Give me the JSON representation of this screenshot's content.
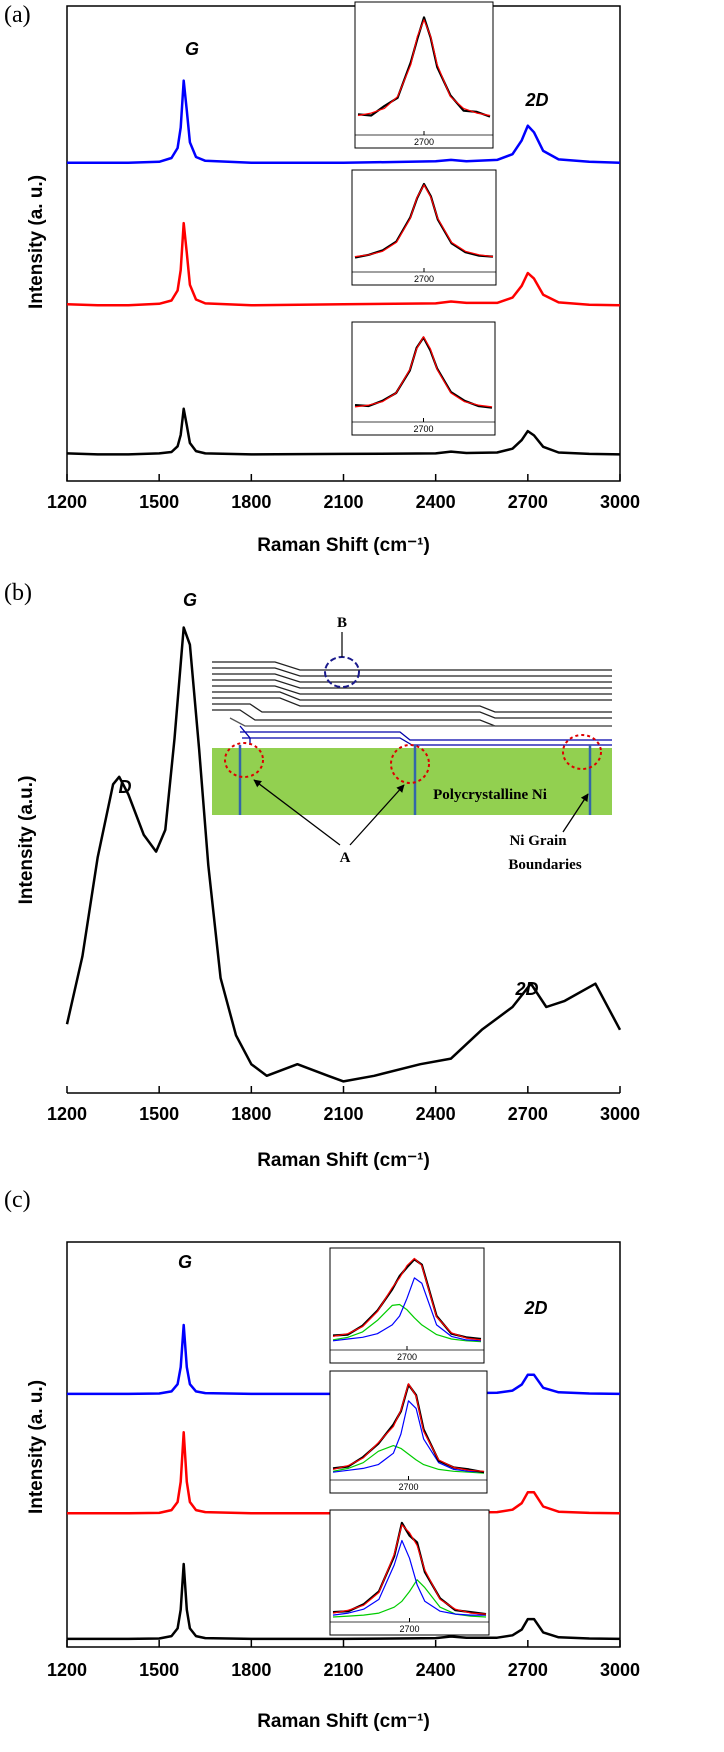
{
  "chart_data": [
    {
      "type": "line",
      "panel_label": "(a)",
      "xlabel": "Raman Shift (cm⁻¹)",
      "ylabel": "Intensity (a. u.)",
      "xlim": [
        1200,
        3000
      ],
      "xticks": [
        1200,
        1500,
        1800,
        2100,
        2400,
        2700,
        3000
      ],
      "ylim": [
        0,
        100
      ],
      "frame": true,
      "annotations": [
        "G",
        "2D"
      ],
      "x": [
        1200,
        1300,
        1400,
        1500,
        1540,
        1560,
        1570,
        1580,
        1590,
        1600,
        1620,
        1650,
        1800,
        2100,
        2400,
        2450,
        2500,
        2600,
        2650,
        2680,
        2700,
        2720,
        2750,
        2800,
        2900,
        3000
      ],
      "series": [
        {
          "color": "#0000ff",
          "values": [
            67,
            67,
            67,
            67.2,
            68,
            70.1,
            74.4,
            84.3,
            78,
            71.3,
            68.2,
            67.4,
            67,
            67,
            67.3,
            67.6,
            67.3,
            67.6,
            68.8,
            71.7,
            74.8,
            73.4,
            69.5,
            67.7,
            67.2,
            67
          ]
        },
        {
          "color": "#ff0000",
          "values": [
            37.2,
            37,
            37,
            37.3,
            38,
            40.1,
            44.4,
            54.3,
            48,
            41.3,
            38.2,
            37.4,
            37,
            37.2,
            37.4,
            37.8,
            37.5,
            37.5,
            38.6,
            41.1,
            43.8,
            42.6,
            39.2,
            37.6,
            37.1,
            37
          ]
        },
        {
          "color": "#000000",
          "values": [
            5.8,
            5.6,
            5.6,
            5.8,
            6.1,
            7.3,
            9.7,
            15.2,
            11.7,
            8,
            6.3,
            5.8,
            5.6,
            5.7,
            5.8,
            6.2,
            5.9,
            6,
            6.8,
            8.6,
            10.5,
            9.6,
            7.2,
            6,
            5.7,
            5.6
          ]
        }
      ],
      "insets": [
        {
          "xlim": [
            2600,
            2800
          ],
          "ylim": [
            0,
            1.05
          ],
          "xticks": [
            2700
          ],
          "x": [
            2600,
            2620,
            2640,
            2660,
            2680,
            2690,
            2700,
            2710,
            2720,
            2740,
            2760,
            2780,
            2800
          ],
          "series": [
            {
              "color": "#000000",
              "values": [
                0.15,
                0.14,
                0.22,
                0.29,
                0.59,
                0.79,
                0.97,
                0.8,
                0.55,
                0.31,
                0.18,
                0.17,
                0.13
              ]
            },
            {
              "color": "#ff0000",
              "values": [
                0.14,
                0.16,
                0.2,
                0.3,
                0.57,
                0.81,
                0.95,
                0.81,
                0.57,
                0.3,
                0.2,
                0.16,
                0.14
              ]
            }
          ]
        },
        {
          "xlim": [
            2600,
            2800
          ],
          "ylim": [
            0,
            1.05
          ],
          "xticks": [
            2700
          ],
          "x": [
            2600,
            2620,
            2640,
            2660,
            2680,
            2690,
            2700,
            2710,
            2720,
            2740,
            2760,
            2780,
            2800
          ],
          "series": [
            {
              "color": "#000000",
              "values": [
                0.13,
                0.16,
                0.21,
                0.31,
                0.58,
                0.8,
                0.96,
                0.82,
                0.56,
                0.29,
                0.19,
                0.15,
                0.14
              ]
            },
            {
              "color": "#ff0000",
              "values": [
                0.14,
                0.16,
                0.2,
                0.3,
                0.57,
                0.81,
                0.95,
                0.81,
                0.57,
                0.3,
                0.2,
                0.16,
                0.14
              ]
            }
          ]
        },
        {
          "xlim": [
            2600,
            2800
          ],
          "ylim": [
            0,
            1.05
          ],
          "xticks": [
            2700
          ],
          "x": [
            2600,
            2620,
            2640,
            2660,
            2680,
            2690,
            2700,
            2710,
            2720,
            2740,
            2760,
            2780,
            2800
          ],
          "series": [
            {
              "color": "#000000",
              "values": [
                0.16,
                0.15,
                0.21,
                0.3,
                0.56,
                0.82,
                0.94,
                0.79,
                0.58,
                0.31,
                0.21,
                0.15,
                0.13
              ]
            },
            {
              "color": "#ff0000",
              "values": [
                0.14,
                0.16,
                0.2,
                0.3,
                0.57,
                0.81,
                0.95,
                0.81,
                0.57,
                0.3,
                0.2,
                0.16,
                0.14
              ]
            }
          ]
        }
      ]
    },
    {
      "type": "line",
      "panel_label": "(b)",
      "xlabel": "Raman Shift (cm⁻¹)",
      "ylabel": "Intensity (a.u.)",
      "xlim": [
        1200,
        3000
      ],
      "xticks": [
        1200,
        1500,
        1800,
        2100,
        2400,
        2700,
        3000
      ],
      "ylim": [
        0,
        100
      ],
      "frame": false,
      "annotations": [
        "D",
        "G",
        "2D"
      ],
      "x": [
        1200,
        1250,
        1300,
        1350,
        1370,
        1400,
        1450,
        1490,
        1520,
        1550,
        1580,
        1600,
        1630,
        1660,
        1700,
        1750,
        1800,
        1850,
        1950,
        2050,
        2100,
        2200,
        2350,
        2450,
        2550,
        2650,
        2710,
        2760,
        2820,
        2920,
        3000
      ],
      "series": [
        {
          "color": "#000000",
          "values": [
            13.6,
            27,
            46.6,
            61,
            62.5,
            59,
            51,
            47.7,
            52,
            70,
            92,
            88.6,
            68,
            45,
            22.7,
            11.4,
            5.7,
            3.4,
            5.7,
            3.4,
            2.3,
            3.4,
            5.7,
            6.8,
            12.5,
            17,
            21.6,
            17,
            18.2,
            21.6,
            12.5
          ]
        }
      ],
      "schematic": [
        "B",
        "A",
        "Polycrystalline Ni",
        "Ni Grain",
        "Boundaries"
      ]
    },
    {
      "type": "line",
      "panel_label": "(c)",
      "xlabel": "Raman Shift (cm⁻¹)",
      "ylabel": "Intensity (a. u.)",
      "xlim": [
        1200,
        3000
      ],
      "xticks": [
        1200,
        1500,
        1800,
        2100,
        2400,
        2700,
        3000
      ],
      "ylim": [
        0,
        100
      ],
      "frame": true,
      "annotations": [
        "G",
        "2D"
      ],
      "x": [
        1200,
        1300,
        1400,
        1500,
        1540,
        1560,
        1570,
        1580,
        1590,
        1600,
        1620,
        1650,
        1800,
        2100,
        2400,
        2450,
        2500,
        2600,
        2650,
        2680,
        2700,
        2720,
        2750,
        2800,
        2900,
        3000
      ],
      "series": [
        {
          "color": "#0000ff",
          "values": [
            62.5,
            62.5,
            62.5,
            62.6,
            63.1,
            64.9,
            69.1,
            79.5,
            69.1,
            64.9,
            63.1,
            62.7,
            62.5,
            62.5,
            62.6,
            62.9,
            62.7,
            62.8,
            63.3,
            64.8,
            67.2,
            67.2,
            64,
            62.9,
            62.6,
            62.5
          ]
        },
        {
          "color": "#ff0000",
          "values": [
            33,
            33,
            33,
            33.1,
            33.8,
            35.8,
            40.8,
            53,
            40.8,
            35.8,
            33.8,
            33.3,
            33,
            33,
            33.1,
            33.5,
            33.2,
            33.3,
            33.9,
            35.5,
            38.2,
            38.2,
            34.7,
            33.4,
            33.1,
            33
          ]
        },
        {
          "color": "#000000",
          "values": [
            2,
            2,
            2,
            2.1,
            2.7,
            4.6,
            9.2,
            20.5,
            9.2,
            4.6,
            2.7,
            2.2,
            2,
            2,
            2.2,
            2.6,
            2.3,
            2.3,
            2.9,
            4.3,
            6.9,
            6.9,
            3.6,
            2.4,
            2.1,
            2
          ]
        }
      ],
      "insets": [
        {
          "xlim": [
            2600,
            2800
          ],
          "ylim": [
            0,
            1.05
          ],
          "xticks": [
            2700
          ],
          "x": [
            2600,
            2620,
            2640,
            2660,
            2680,
            2690,
            2700,
            2710,
            2720,
            2740,
            2760,
            2780,
            2800
          ],
          "series": [
            {
              "color": "#00cc00",
              "values": [
                0.08,
                0.11,
                0.17,
                0.3,
                0.47,
                0.48,
                0.42,
                0.33,
                0.25,
                0.14,
                0.09,
                0.07,
                0.06
              ]
            },
            {
              "color": "#0000ff",
              "values": [
                0.07,
                0.09,
                0.11,
                0.15,
                0.25,
                0.35,
                0.55,
                0.78,
                0.72,
                0.25,
                0.12,
                0.08,
                0.07
              ]
            },
            {
              "color": "#000000",
              "values": [
                0.13,
                0.14,
                0.24,
                0.41,
                0.65,
                0.8,
                0.9,
                0.99,
                0.93,
                0.35,
                0.15,
                0.11,
                0.09
              ]
            },
            {
              "color": "#ff0000",
              "values": [
                0.12,
                0.15,
                0.23,
                0.4,
                0.67,
                0.78,
                0.92,
                1.0,
                0.92,
                0.34,
                0.16,
                0.1,
                0.08
              ]
            }
          ]
        },
        {
          "xlim": [
            2600,
            2800
          ],
          "ylim": [
            0,
            1.05
          ],
          "xticks": [
            2700
          ],
          "x": [
            2600,
            2620,
            2640,
            2660,
            2680,
            2690,
            2700,
            2710,
            2720,
            2740,
            2760,
            2780,
            2800
          ],
          "series": [
            {
              "color": "#00cc00",
              "values": [
                0.06,
                0.09,
                0.15,
                0.27,
                0.33,
                0.3,
                0.24,
                0.18,
                0.13,
                0.08,
                0.06,
                0.05,
                0.04
              ]
            },
            {
              "color": "#0000ff",
              "values": [
                0.05,
                0.07,
                0.09,
                0.13,
                0.25,
                0.45,
                0.8,
                0.72,
                0.4,
                0.15,
                0.08,
                0.06,
                0.05
              ]
            },
            {
              "color": "#000000",
              "values": [
                0.09,
                0.11,
                0.21,
                0.35,
                0.55,
                0.69,
                0.97,
                0.86,
                0.5,
                0.17,
                0.1,
                0.08,
                0.05
              ]
            },
            {
              "color": "#ff0000",
              "values": [
                0.08,
                0.12,
                0.2,
                0.36,
                0.53,
                0.7,
                0.98,
                0.85,
                0.48,
                0.18,
                0.1,
                0.07,
                0.06
              ]
            }
          ]
        },
        {
          "xlim": [
            2600,
            2800
          ],
          "ylim": [
            0,
            1.05
          ],
          "xticks": [
            2700
          ],
          "x": [
            2600,
            2620,
            2640,
            2660,
            2680,
            2690,
            2700,
            2710,
            2720,
            2740,
            2760,
            2780,
            2800
          ],
          "series": [
            {
              "color": "#00cc00",
              "values": [
                0.02,
                0.03,
                0.04,
                0.06,
                0.12,
                0.18,
                0.28,
                0.4,
                0.32,
                0.12,
                0.05,
                0.03,
                0.02
              ]
            },
            {
              "color": "#0000ff",
              "values": [
                0.04,
                0.06,
                0.1,
                0.2,
                0.55,
                0.8,
                0.62,
                0.35,
                0.18,
                0.08,
                0.05,
                0.04,
                0.04
              ]
            },
            {
              "color": "#000000",
              "values": [
                0.07,
                0.08,
                0.15,
                0.28,
                0.64,
                0.98,
                0.85,
                0.78,
                0.48,
                0.21,
                0.09,
                0.07,
                0.05
              ]
            },
            {
              "color": "#ff0000",
              "values": [
                0.06,
                0.09,
                0.14,
                0.27,
                0.66,
                0.96,
                0.88,
                0.75,
                0.5,
                0.2,
                0.1,
                0.06,
                0.05
              ]
            }
          ]
        }
      ]
    }
  ]
}
